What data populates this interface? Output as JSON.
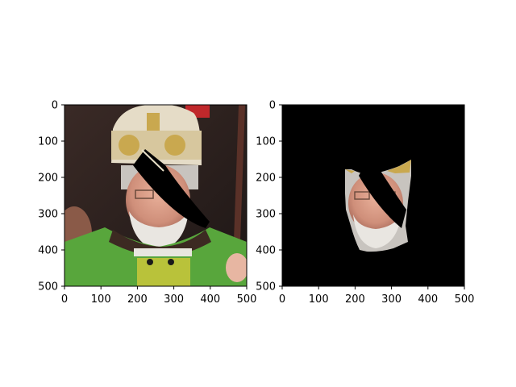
{
  "figure": {
    "background": "#ffffff",
    "panels": [
      {
        "name": "original-photo",
        "content": "masked portrait photo of a bishop wearing a white and gold mitre and green vestments",
        "x_ticks": [
          "0",
          "100",
          "200",
          "300",
          "400",
          "500"
        ],
        "y_ticks": [
          "0",
          "100",
          "200",
          "300",
          "400",
          "500"
        ]
      },
      {
        "name": "segmented-face",
        "content": "face region only on black background, with black diagonal occlusion stripe",
        "x_ticks": [
          "0",
          "100",
          "200",
          "300",
          "400",
          "500"
        ],
        "y_ticks": [
          "0",
          "100",
          "200",
          "300",
          "400",
          "500"
        ]
      }
    ]
  }
}
